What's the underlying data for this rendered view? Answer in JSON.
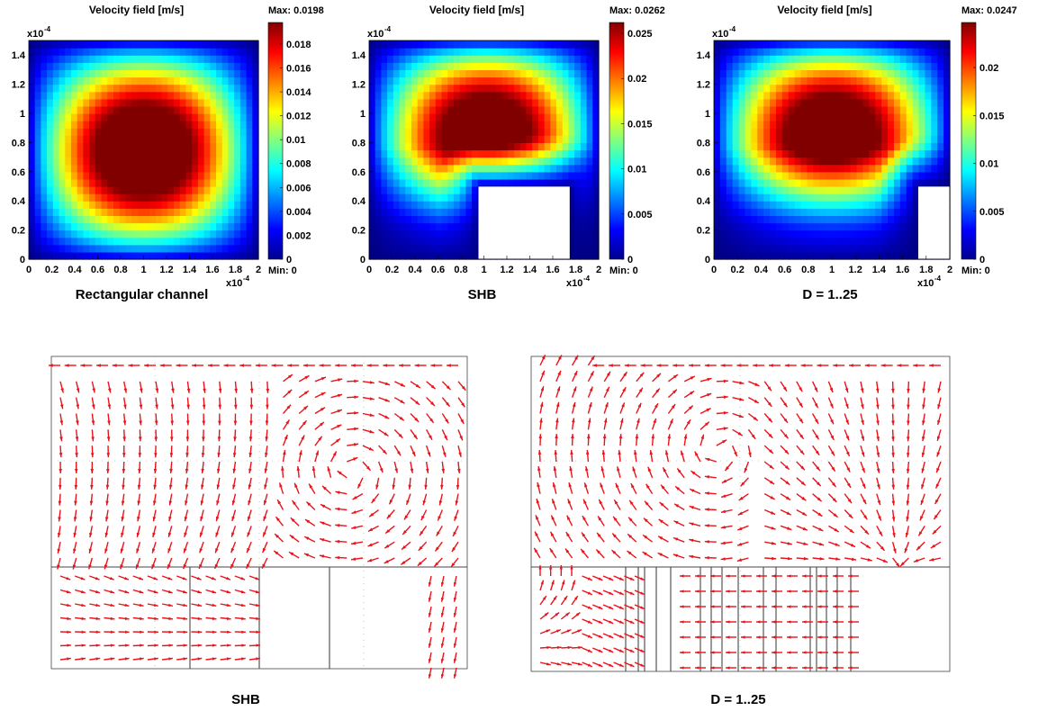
{
  "chart_data": [
    {
      "type": "heatmap",
      "title": "Velocity field [m/s]",
      "caption": "Rectangular channel",
      "max_label": "Max: 0.0198",
      "min_label": "Min: 0",
      "x_exponent": "x10",
      "x_exponent_power": "-4",
      "y_exponent": "x10",
      "y_exponent_power": "-4",
      "x_ticks": [
        "0",
        "0.2",
        "0.4",
        "0.6",
        "0.8",
        "1",
        "1.2",
        "1.4",
        "1.6",
        "1.8",
        "2"
      ],
      "y_ticks": [
        "0",
        "0.2",
        "0.4",
        "0.6",
        "0.8",
        "1",
        "1.2",
        "1.4"
      ],
      "xlim": [
        0,
        2
      ],
      "ylim": [
        0,
        1.5
      ],
      "colorbar_ticks": [
        "0",
        "0.002",
        "0.004",
        "0.006",
        "0.008",
        "0.01",
        "0.012",
        "0.014",
        "0.016",
        "0.018"
      ],
      "colorbar_range": [
        0,
        0.0198
      ],
      "peak": {
        "x": 1.0,
        "y": 0.75,
        "value": 0.0198
      },
      "blocks": []
    },
    {
      "type": "heatmap",
      "title": "Velocity field [m/s]",
      "caption": "SHB",
      "max_label": "Max: 0.0262",
      "min_label": "Min: 0",
      "x_exponent": "x10",
      "x_exponent_power": "-4",
      "y_exponent": "x10",
      "y_exponent_power": "-4",
      "x_ticks": [
        "0",
        "0.2",
        "0.4",
        "0.6",
        "0.8",
        "1",
        "1.2",
        "1.4",
        "1.6",
        "1.8",
        "2"
      ],
      "y_ticks": [
        "0",
        "0.2",
        "0.4",
        "0.6",
        "0.8",
        "1",
        "1.2",
        "1.4"
      ],
      "xlim": [
        0,
        2
      ],
      "ylim": [
        0,
        1.5
      ],
      "colorbar_ticks": [
        "0",
        "0.005",
        "0.01",
        "0.015",
        "0.02",
        "0.025"
      ],
      "colorbar_range": [
        0,
        0.0262
      ],
      "peak": {
        "x": 1.05,
        "y": 0.97,
        "value": 0.0262
      },
      "blocks": [
        {
          "x0": 0.95,
          "x1": 1.75,
          "y0": 0,
          "y1": 0.5
        }
      ]
    },
    {
      "type": "heatmap",
      "title": "Velocity field [m/s]",
      "caption": "D = 1..25",
      "max_label": "Max: 0.0247",
      "min_label": "Min: 0",
      "x_exponent": "x10",
      "x_exponent_power": "-4",
      "y_exponent": "x10",
      "y_exponent_power": "-4",
      "x_ticks": [
        "0",
        "0.2",
        "0.4",
        "0.6",
        "0.8",
        "1",
        "1.2",
        "1.4",
        "1.6",
        "1.8",
        "2"
      ],
      "y_ticks": [
        "0",
        "0.2",
        "0.4",
        "0.6",
        "0.8",
        "1",
        "1.2",
        "1.4"
      ],
      "xlim": [
        0,
        2
      ],
      "ylim": [
        0,
        1.5
      ],
      "colorbar_ticks": [
        "0",
        "0.005",
        "0.01",
        "0.015",
        "0.02"
      ],
      "colorbar_range": [
        0,
        0.0247
      ],
      "peak": {
        "x": 1.0,
        "y": 0.97,
        "value": 0.0247
      },
      "blocks": [
        {
          "x0": 1.73,
          "x1": 2.0,
          "y0": 0,
          "y1": 0.5
        }
      ]
    },
    {
      "type": "scatter",
      "subtype": "quiver",
      "caption": "SHB",
      "arrow_color": "#e8141a",
      "flow": "clockwise vortex in upper region with sink near the block top edge",
      "blocks": [
        {
          "x0": 0.5,
          "x1": 0.67,
          "y0": 0,
          "y1": 0.5
        }
      ]
    },
    {
      "type": "scatter",
      "subtype": "quiver",
      "caption": "D = 1..25",
      "arrow_color": "#e8141a",
      "flow": "counter-rotating vortices meeting near lower-right corner of the upper region",
      "blocks": [
        {
          "x0": 0.9,
          "x1": 1.0,
          "y0": 0,
          "y1": 0.5
        }
      ]
    }
  ]
}
